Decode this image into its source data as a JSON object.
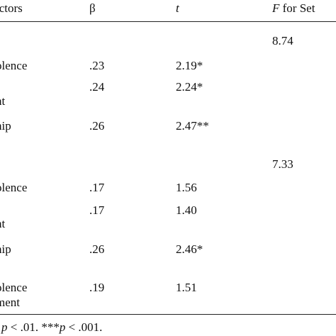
{
  "header": {
    "predictors": "ictors",
    "beta": "β",
    "t": "t",
    "f_italic": "F",
    "f_rest": " for Set"
  },
  "rows": [
    {
      "label": "",
      "beta": "",
      "t": "",
      "f": "8.74"
    },
    {
      "label": "olence",
      "beta": ".23",
      "t": "2.19*",
      "f": ""
    },
    {
      "label": "",
      "beta": ".24",
      "t": "2.24*",
      "f": ""
    },
    {
      "label": "nt",
      "beta": "",
      "t": "",
      "f": ""
    },
    {
      "label": "hip",
      "beta": ".26",
      "t": "2.47**",
      "f": ""
    },
    {
      "label": "",
      "beta": "",
      "t": "",
      "f": "7.33"
    },
    {
      "label": "olence",
      "beta": ".17",
      "t": "1.56",
      "f": ""
    },
    {
      "label": "",
      "beta": ".17",
      "t": "1.40",
      "f": ""
    },
    {
      "label": "nt",
      "beta": "",
      "t": "",
      "f": ""
    },
    {
      "label": "hip",
      "beta": ".26",
      "t": "2.46*",
      "f": ""
    },
    {
      "label": "olence",
      "beta": ".19",
      "t": "1.51",
      "f": ""
    },
    {
      "label": "ment",
      "beta": "",
      "t": "",
      "f": ""
    }
  ],
  "footnote": {
    "p1": "p",
    "t1": " < .01. ***",
    "p2": "p",
    "t2": " < .001."
  }
}
